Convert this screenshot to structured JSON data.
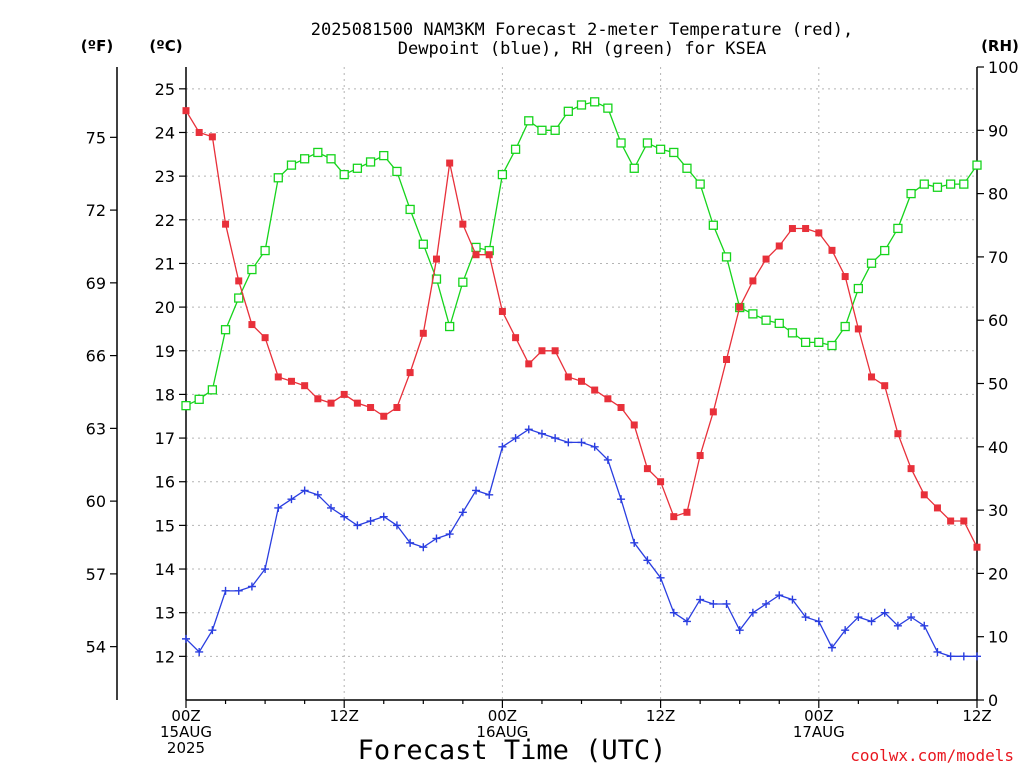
{
  "chart_data": {
    "type": "line",
    "title_lines": [
      "2025081500 NAM3KM Forecast 2-meter Temperature (red),",
      "Dewpoint (blue), RH (green) for KSEA"
    ],
    "xlabel": "Forecast Time (UTC)",
    "units": {
      "fahrenheit": "(ºF)",
      "celsius": "(ºC)",
      "rh": "(RH)"
    },
    "x_range": [
      0,
      60
    ],
    "x_ticks": [
      {
        "x": 0,
        "lines": [
          "00Z",
          "15AUG",
          "2025"
        ]
      },
      {
        "x": 12,
        "lines": [
          "12Z"
        ]
      },
      {
        "x": 24,
        "lines": [
          "00Z",
          "16AUG"
        ]
      },
      {
        "x": 36,
        "lines": [
          "12Z"
        ]
      },
      {
        "x": 48,
        "lines": [
          "00Z",
          "17AUG"
        ]
      },
      {
        "x": 60,
        "lines": [
          "12Z"
        ]
      }
    ],
    "y_celsius": {
      "range": [
        11,
        25.5
      ],
      "ticks": [
        12,
        13,
        14,
        15,
        16,
        17,
        18,
        19,
        20,
        21,
        22,
        23,
        24,
        25
      ]
    },
    "y_fahrenheit": {
      "ticks": [
        54,
        57,
        60,
        63,
        66,
        69,
        72,
        75
      ]
    },
    "y_rh": {
      "range": [
        0,
        100
      ],
      "ticks": [
        0,
        10,
        20,
        30,
        40,
        50,
        60,
        70,
        80,
        90,
        100
      ]
    },
    "grid": true,
    "colors": {
      "temperature": "#e8303a",
      "dewpoint": "#2a3ee0",
      "rh": "#16d41c",
      "credit": "#e8171f"
    },
    "series": [
      {
        "key": "temperature",
        "axis": "celsius",
        "marker": "filled-square",
        "x": [
          0,
          1,
          2,
          3,
          4,
          5,
          6,
          7,
          8,
          9,
          10,
          11,
          12,
          13,
          14,
          15,
          16,
          17,
          18,
          19,
          20,
          21,
          22,
          23,
          24,
          25,
          26,
          27,
          28,
          29,
          30,
          31,
          32,
          33,
          34,
          35,
          36,
          37,
          38,
          39,
          40,
          41,
          42,
          43,
          44,
          45,
          46,
          47,
          48,
          49,
          50,
          51,
          52,
          53,
          54,
          55,
          56,
          57,
          58,
          59,
          60
        ],
        "values": [
          24.5,
          24.0,
          23.9,
          21.9,
          20.6,
          19.6,
          19.3,
          18.4,
          18.3,
          18.2,
          17.9,
          17.8,
          18.0,
          17.8,
          17.7,
          17.5,
          17.7,
          18.5,
          19.4,
          21.1,
          23.3,
          21.9,
          21.2,
          21.2,
          19.9,
          19.3,
          18.7,
          19.0,
          19.0,
          18.4,
          18.3,
          18.1,
          17.9,
          17.7,
          17.3,
          16.3,
          16.0,
          15.2,
          15.3,
          16.6,
          17.6,
          18.8,
          20.0,
          20.6,
          21.1,
          21.4,
          21.8,
          21.8,
          21.7,
          21.3,
          20.7,
          19.5,
          18.4,
          18.2,
          17.1,
          16.3,
          15.7,
          15.4,
          15.1,
          15.1,
          14.5
        ]
      },
      {
        "key": "dewpoint",
        "axis": "celsius",
        "marker": "plus",
        "x": [
          0,
          1,
          2,
          3,
          4,
          5,
          6,
          7,
          8,
          9,
          10,
          11,
          12,
          13,
          14,
          15,
          16,
          17,
          18,
          19,
          20,
          21,
          22,
          23,
          24,
          25,
          26,
          27,
          28,
          29,
          30,
          31,
          32,
          33,
          34,
          35,
          36,
          37,
          38,
          39,
          40,
          41,
          42,
          43,
          44,
          45,
          46,
          47,
          48,
          49,
          50,
          51,
          52,
          53,
          54,
          55,
          56,
          57,
          58,
          59,
          60
        ],
        "values": [
          12.4,
          12.1,
          12.6,
          13.5,
          13.5,
          13.6,
          14.0,
          15.4,
          15.6,
          15.8,
          15.7,
          15.4,
          15.2,
          15.0,
          15.1,
          15.2,
          15.0,
          14.6,
          14.5,
          14.7,
          14.8,
          15.3,
          15.8,
          15.7,
          16.8,
          17.0,
          17.2,
          17.1,
          17.0,
          16.9,
          16.9,
          16.8,
          16.5,
          15.6,
          14.6,
          14.2,
          13.8,
          13.0,
          12.8,
          13.3,
          13.2,
          13.2,
          12.6,
          13.0,
          13.2,
          13.4,
          13.3,
          12.9,
          12.8,
          12.2,
          12.6,
          12.9,
          12.8,
          13.0,
          12.7,
          12.9,
          12.7,
          12.1,
          12.0,
          12.0,
          12.0
        ]
      },
      {
        "key": "rh",
        "axis": "rh",
        "marker": "hollow-square",
        "x": [
          0,
          1,
          2,
          3,
          4,
          5,
          6,
          7,
          8,
          9,
          10,
          11,
          12,
          13,
          14,
          15,
          16,
          17,
          18,
          19,
          20,
          21,
          22,
          23,
          24,
          25,
          26,
          27,
          28,
          29,
          30,
          31,
          32,
          33,
          34,
          35,
          36,
          37,
          38,
          39,
          40,
          41,
          42,
          43,
          44,
          45,
          46,
          47,
          48,
          49,
          50,
          51,
          52,
          53,
          54,
          55,
          56,
          57,
          58,
          59,
          60
        ],
        "values": [
          46.5,
          47.5,
          49,
          58.5,
          63.5,
          68,
          71,
          82.5,
          84.5,
          85.5,
          86.5,
          85.5,
          83,
          84,
          85,
          86,
          83.5,
          77.5,
          72,
          66.5,
          59,
          66,
          71.5,
          71,
          83,
          87,
          91.5,
          90,
          90,
          93,
          94,
          94.5,
          93.5,
          88,
          84,
          88,
          87,
          86.5,
          84,
          81.5,
          75,
          70,
          62,
          61,
          60,
          59.5,
          58,
          56.5,
          56.5,
          56,
          59,
          65,
          69,
          71,
          74.5,
          80,
          81.5,
          81,
          81.5,
          81.5,
          84.5
        ]
      }
    ],
    "credit": "coolwx.com/models"
  }
}
